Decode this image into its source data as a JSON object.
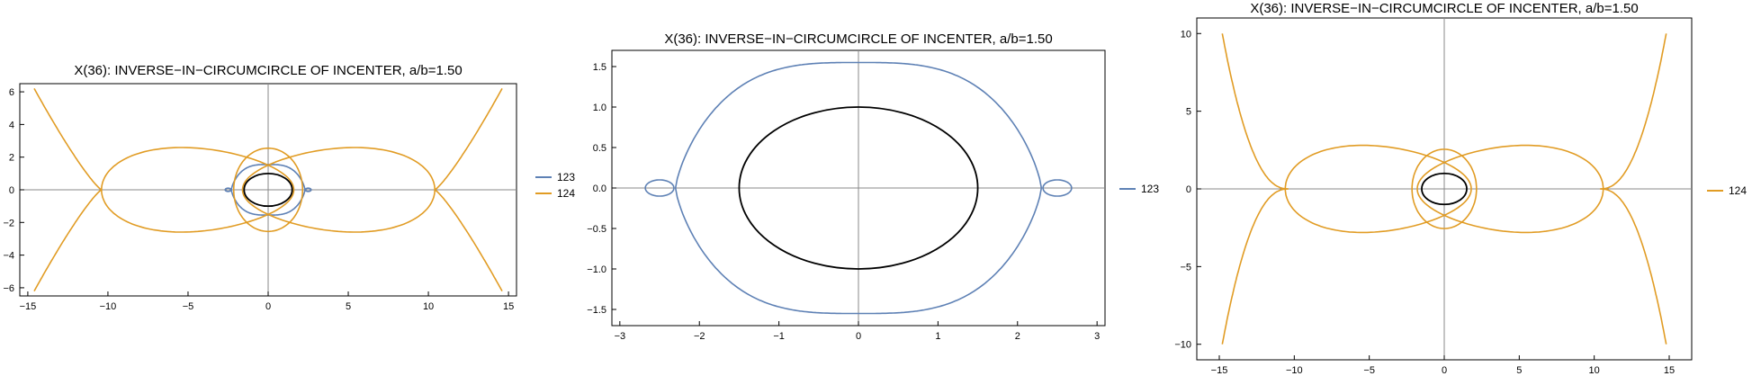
{
  "colors": {
    "c123": "#5e81b5",
    "c124": "#e19c24",
    "ellipse": "#000000",
    "axes": "#888888"
  },
  "chart_data": [
    {
      "type": "line",
      "title": "X(36): INVERSE−IN−CIRCUMCIRCLE OF INCENTER, a/b=1.50",
      "xlim": [
        -15.5,
        15.5
      ],
      "ylim": [
        -6.5,
        6.5
      ],
      "xticks": [
        -15,
        -10,
        -5,
        0,
        5,
        10,
        15
      ],
      "xtick_labels": [
        "−15",
        "−10",
        "−5",
        "0",
        "5",
        "10",
        "15"
      ],
      "yticks": [
        -6,
        -4,
        -2,
        0,
        2,
        4,
        6
      ],
      "ytick_labels": [
        "−6",
        "−4",
        "−2",
        "0",
        "2",
        "4",
        "6"
      ],
      "legend": [
        "123",
        "124"
      ],
      "series": [
        {
          "name": "123",
          "color": "#5e81b5",
          "family": "c123"
        },
        {
          "name": "124",
          "color": "#e19c24",
          "family": "c124"
        }
      ],
      "ellipse": {
        "a": 1.5,
        "b": 1.0
      },
      "grid": false,
      "legend_position": "right"
    },
    {
      "type": "line",
      "title": "X(36): INVERSE−IN−CIRCUMCIRCLE OF INCENTER, a/b=1.50",
      "xlim": [
        -3.1,
        3.1
      ],
      "ylim": [
        -1.7,
        1.7
      ],
      "xticks": [
        -3,
        -2,
        -1,
        0,
        1,
        2,
        3
      ],
      "xtick_labels": [
        "−3",
        "−2",
        "−1",
        "0",
        "1",
        "2",
        "3"
      ],
      "yticks": [
        -1.5,
        -1.0,
        -0.5,
        0.0,
        0.5,
        1.0,
        1.5
      ],
      "ytick_labels": [
        "−1.5",
        "−1.0",
        "−0.5",
        "0.0",
        "0.5",
        "1.0",
        "1.5"
      ],
      "legend": [
        "123"
      ],
      "series": [
        {
          "name": "123",
          "color": "#5e81b5",
          "family": "c123"
        }
      ],
      "ellipse": {
        "a": 1.5,
        "b": 1.0
      },
      "grid": false,
      "legend_position": "right"
    },
    {
      "type": "line",
      "title": "X(36): INVERSE−IN−CIRCUMCIRCLE OF INCENTER, a/b=1.50",
      "xlim": [
        -16.5,
        16.5
      ],
      "ylim": [
        -11,
        11
      ],
      "xticks": [
        -15,
        -10,
        -5,
        0,
        5,
        10,
        15
      ],
      "xtick_labels": [
        "−15",
        "−10",
        "−5",
        "0",
        "5",
        "10",
        "15"
      ],
      "yticks": [
        -10,
        -5,
        0,
        5,
        10
      ],
      "ytick_labels": [
        "−10",
        "−5",
        "0",
        "5",
        "10"
      ],
      "legend": [
        "124"
      ],
      "series": [
        {
          "name": "124",
          "color": "#e19c24",
          "family": "c124"
        }
      ],
      "ellipse": {
        "a": 1.5,
        "b": 1.0
      },
      "grid": false,
      "legend_position": "right"
    }
  ]
}
